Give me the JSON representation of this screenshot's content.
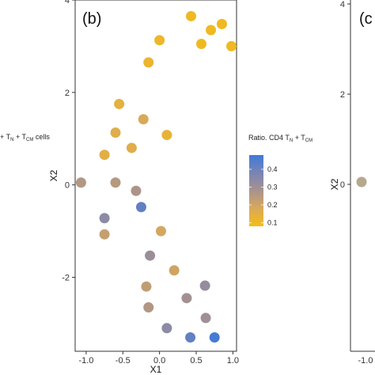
{
  "chart_data": {
    "type": "scatter",
    "panel_label": "(b)",
    "xlabel": "X1",
    "ylabel": "X2",
    "xlim": [
      -1.15,
      1.05
    ],
    "ylim": [
      -3.6,
      4.0
    ],
    "x_ticks": [
      -1.0,
      -0.5,
      0.0,
      0.5,
      1.0
    ],
    "x_tick_labels": [
      "-1.0",
      "-0.5",
      "0.0",
      "0.5",
      "1.0"
    ],
    "y_ticks": [
      -2,
      0,
      2,
      4
    ],
    "y_tick_labels": [
      "-2",
      "0",
      "2",
      "4"
    ],
    "color_scale": {
      "title_main": "Ratio. CD4 T",
      "title_sub1": "N",
      "title_mid": " + T",
      "title_sub2": "CM",
      "min": 0.08,
      "max": 0.48,
      "ticks": [
        0.1,
        0.2,
        0.3,
        0.4
      ],
      "tick_labels": [
        "0.1",
        "0.2",
        "0.3",
        "0.4"
      ],
      "colors": [
        "#f5bd14",
        "#d9a95a",
        "#a8928e",
        "#7a84b4",
        "#3f7ad8"
      ]
    },
    "points": [
      {
        "x": 0.43,
        "y": 3.65,
        "v": 0.1
      },
      {
        "x": 0.85,
        "y": 3.48,
        "v": 0.1
      },
      {
        "x": 0.7,
        "y": 3.35,
        "v": 0.1
      },
      {
        "x": 0.0,
        "y": 3.13,
        "v": 0.11
      },
      {
        "x": 0.57,
        "y": 3.05,
        "v": 0.1
      },
      {
        "x": 0.98,
        "y": 3.0,
        "v": 0.1
      },
      {
        "x": -0.15,
        "y": 2.65,
        "v": 0.12
      },
      {
        "x": -0.55,
        "y": 1.75,
        "v": 0.14
      },
      {
        "x": -0.22,
        "y": 1.42,
        "v": 0.18
      },
      {
        "x": -0.6,
        "y": 1.13,
        "v": 0.16
      },
      {
        "x": 0.1,
        "y": 1.08,
        "v": 0.13
      },
      {
        "x": -0.38,
        "y": 0.8,
        "v": 0.16
      },
      {
        "x": -0.75,
        "y": 0.65,
        "v": 0.15
      },
      {
        "x": -1.07,
        "y": 0.05,
        "v": 0.26
      },
      {
        "x": -0.6,
        "y": 0.05,
        "v": 0.25
      },
      {
        "x": -0.32,
        "y": -0.13,
        "v": 0.27
      },
      {
        "x": -0.25,
        "y": -0.48,
        "v": 0.42
      },
      {
        "x": -0.75,
        "y": -0.72,
        "v": 0.34
      },
      {
        "x": -0.75,
        "y": -1.07,
        "v": 0.22
      },
      {
        "x": 0.02,
        "y": -1.0,
        "v": 0.19
      },
      {
        "x": -0.13,
        "y": -1.53,
        "v": 0.31
      },
      {
        "x": 0.2,
        "y": -1.85,
        "v": 0.2
      },
      {
        "x": 0.62,
        "y": -2.18,
        "v": 0.32
      },
      {
        "x": -0.18,
        "y": -2.2,
        "v": 0.23
      },
      {
        "x": 0.37,
        "y": -2.45,
        "v": 0.29
      },
      {
        "x": -0.15,
        "y": -2.65,
        "v": 0.26
      },
      {
        "x": 0.63,
        "y": -2.88,
        "v": 0.3
      },
      {
        "x": 0.1,
        "y": -3.1,
        "v": 0.34
      },
      {
        "x": 0.42,
        "y": -3.3,
        "v": 0.42
      },
      {
        "x": 0.75,
        "y": -3.3,
        "v": 0.47
      }
    ]
  },
  "left_cut": {
    "prefix": "+ T",
    "sub1": "N",
    "mid": " + T",
    "sub2": "CM",
    "suffix": " cells"
  },
  "right_cut": {
    "panel_label": "(c",
    "y_tick_labels": [
      "4",
      "2",
      "0"
    ],
    "ylabel": "X2",
    "x_tick_label": "-1.0",
    "point_color": "#b5a88e"
  }
}
